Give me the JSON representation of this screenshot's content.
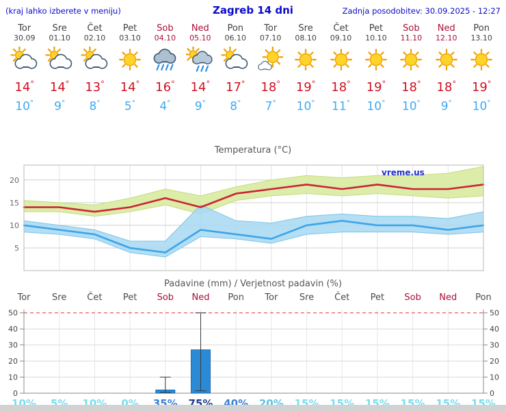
{
  "header": {
    "hint": "(kraj lahko izberete v meniju)",
    "title": "Zagreb 14 dni",
    "updated": "Zadnja posodobitev: 30.09.2025 - 12:27"
  },
  "colors": {
    "header_blue": "#0a0acc",
    "weekend_red": "#a80f35",
    "max_temp_red": "#cf1020",
    "min_temp_blue": "#3fa9ef",
    "bar_blue": "#2b8ad6",
    "prob": {
      "very_high": "#223a8c",
      "high": "#3a7fd2",
      "med": "#5fc0e2",
      "low": "#7adcec"
    }
  },
  "days": [
    {
      "name": "Tor",
      "date": "30.09",
      "weekend": false,
      "icon": "partly-cloudy",
      "high": 14,
      "low": 10
    },
    {
      "name": "Sre",
      "date": "01.10",
      "weekend": false,
      "icon": "partly-cloudy",
      "high": 14,
      "low": 9
    },
    {
      "name": "Čet",
      "date": "02.10",
      "weekend": false,
      "icon": "partly-cloudy",
      "high": 13,
      "low": 8
    },
    {
      "name": "Pet",
      "date": "03.10",
      "weekend": false,
      "icon": "sunny",
      "high": 14,
      "low": 5
    },
    {
      "name": "Sob",
      "date": "04.10",
      "weekend": true,
      "icon": "rain",
      "high": 16,
      "low": 4
    },
    {
      "name": "Ned",
      "date": "05.10",
      "weekend": true,
      "icon": "rain-sun",
      "high": 14,
      "low": 9
    },
    {
      "name": "Pon",
      "date": "06.10",
      "weekend": false,
      "icon": "partly-cloudy",
      "high": 17,
      "low": 8
    },
    {
      "name": "Tor",
      "date": "07.10",
      "weekend": false,
      "icon": "mostly-sunny",
      "high": 18,
      "low": 7
    },
    {
      "name": "Sre",
      "date": "08.10",
      "weekend": false,
      "icon": "sunny",
      "high": 19,
      "low": 10
    },
    {
      "name": "Čet",
      "date": "09.10",
      "weekend": false,
      "icon": "sunny",
      "high": 18,
      "low": 11
    },
    {
      "name": "Pet",
      "date": "10.10",
      "weekend": false,
      "icon": "sunny",
      "high": 19,
      "low": 10
    },
    {
      "name": "Sob",
      "date": "11.10",
      "weekend": true,
      "icon": "sunny",
      "high": 18,
      "low": 10
    },
    {
      "name": "Ned",
      "date": "12.10",
      "weekend": true,
      "icon": "sunny",
      "high": 18,
      "low": 9
    },
    {
      "name": "Pon",
      "date": "13.10",
      "weekend": false,
      "icon": "sunny",
      "high": 19,
      "low": 10
    }
  ],
  "chart_data": [
    {
      "type": "line",
      "title": "Temperatura (°C)",
      "watermark": "vreme.us",
      "categories": [
        "Tor",
        "Sre",
        "Čet",
        "Pet",
        "Sob",
        "Ned",
        "Pon",
        "Tor",
        "Sre",
        "Čet",
        "Pet",
        "Sob",
        "Ned",
        "Pon"
      ],
      "yticks": [
        5,
        10,
        15,
        20
      ],
      "ylim": [
        0,
        23.3
      ],
      "grid": true,
      "series": [
        {
          "name": "max-temp",
          "color": "#cc2233",
          "values": [
            14,
            14,
            13,
            14,
            16,
            14,
            17,
            18,
            19,
            18,
            19,
            18,
            18,
            19
          ]
        },
        {
          "name": "min-temp",
          "color": "#3da4e8",
          "values": [
            10,
            9,
            8,
            5,
            4,
            9,
            8,
            7,
            10,
            11,
            10,
            10,
            9,
            10
          ]
        }
      ],
      "bands": [
        {
          "name": "max-temp-range",
          "fill": "#dcedaa",
          "stroke": "#c6da7e",
          "upper": [
            15.5,
            15,
            14.5,
            16,
            18,
            16.5,
            18.5,
            20,
            21,
            20.5,
            21,
            21,
            21.5,
            23
          ],
          "lower": [
            13,
            13,
            12,
            13,
            14.5,
            12.5,
            15.5,
            16.5,
            17,
            16.5,
            17,
            16.5,
            16,
            16.5
          ]
        },
        {
          "name": "min-temp-range",
          "fill": "#a9d9f2",
          "stroke": "#7cc4e8",
          "upper": [
            11,
            10,
            9,
            6.5,
            6.5,
            14.5,
            11,
            10.5,
            12,
            12.5,
            12,
            12,
            11.5,
            13
          ],
          "lower": [
            8.5,
            8,
            7,
            4,
            3,
            7.5,
            7,
            6,
            8,
            8.5,
            8.5,
            8.5,
            8,
            8.5
          ]
        }
      ]
    },
    {
      "type": "bar",
      "title": "Padavine (mm) / Verjetnost padavin (%)",
      "categories": [
        "Tor",
        "Sre",
        "Čet",
        "Pet",
        "Sob",
        "Ned",
        "Pon",
        "Tor",
        "Sre",
        "Čet",
        "Pet",
        "Sob",
        "Ned",
        "Pon"
      ],
      "yticks": [
        0,
        10,
        20,
        30,
        40,
        50
      ],
      "ylim": [
        0,
        52
      ],
      "bar_color": "#2b8ad6",
      "values": [
        0,
        0,
        0,
        0,
        2,
        27,
        0,
        0,
        0,
        0,
        0,
        0,
        0,
        0
      ],
      "range_low": [
        0,
        0,
        0,
        0,
        0.5,
        1.5,
        0,
        0,
        0,
        0,
        0,
        0,
        0,
        0
      ],
      "range_high": [
        0,
        0,
        0,
        0,
        10,
        50,
        0,
        0,
        0,
        0,
        0,
        0,
        0,
        0
      ],
      "probabilities": [
        "10%",
        "5%",
        "10%",
        "0%",
        "35%",
        "75%",
        "40%",
        "20%",
        "15%",
        "15%",
        "15%",
        "15%",
        "15%",
        "15%"
      ]
    }
  ]
}
